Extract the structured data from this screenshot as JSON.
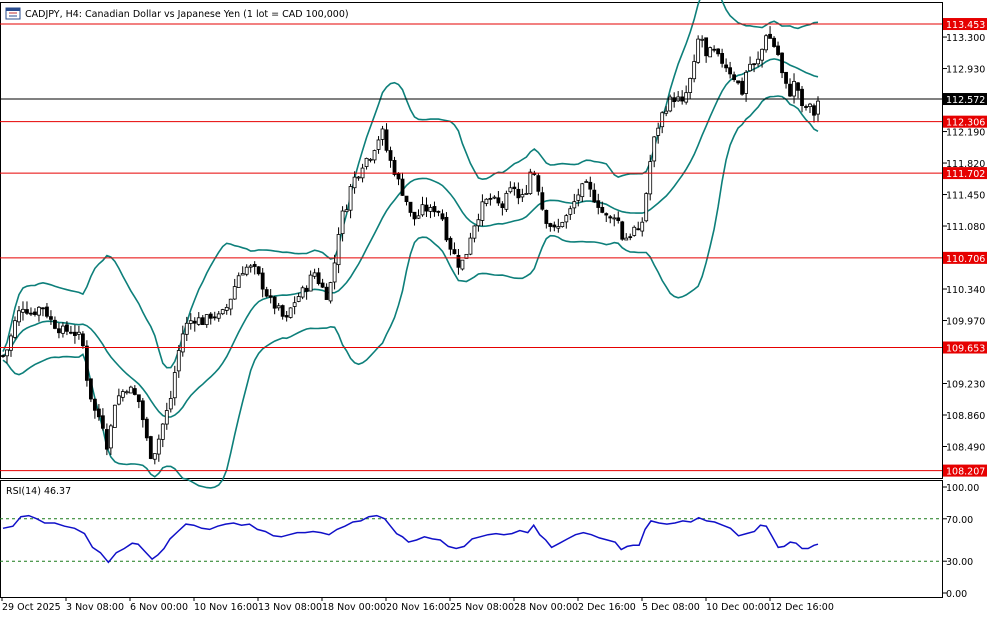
{
  "chart_data": [
    {
      "type": "candlestick",
      "title": "CADJPY, H4:  Canadian Dollar vs Japanese Yen (1 lot = CAD 100,000)",
      "ylim": [
        108.12,
        113.7
      ],
      "y_ticks": [
        113.3,
        112.93,
        112.19,
        111.82,
        111.45,
        111.08,
        110.34,
        109.97,
        109.23,
        108.86,
        108.49
      ],
      "y_tick_labels": [
        "113.300",
        "112.930",
        "112.190",
        "111.820",
        "111.450",
        "111.080",
        "110.340",
        "109.970",
        "109.230",
        "108.860",
        "108.490"
      ],
      "x_tick_labels": [
        "29 Oct 2025",
        "3 Nov 08:00",
        "6 Nov 00:00",
        "10 Nov 16:00",
        "13 Nov 08:00",
        "18 Nov 00:00",
        "20 Nov 16:00",
        "25 Nov 08:00",
        "28 Nov 00:00",
        "2 Dec 16:00",
        "5 Dec 08:00",
        "10 Dec 00:00",
        "12 Dec 16:00"
      ],
      "bollinger_bands_color": "#0d7f7a",
      "levels": [
        {
          "value": 113.453,
          "label": "113.453",
          "color": "#e60000"
        },
        {
          "value": 112.306,
          "label": "112.306",
          "color": "#e60000"
        },
        {
          "value": 111.702,
          "label": "111.702",
          "color": "#e60000"
        },
        {
          "value": 110.706,
          "label": "110.706",
          "color": "#e60000"
        },
        {
          "value": 109.653,
          "label": "109.653",
          "color": "#e60000"
        },
        {
          "value": 108.207,
          "label": "108.207",
          "color": "#e60000"
        }
      ],
      "current_price": {
        "value": 112.572,
        "label": "112.572",
        "color": "#000000"
      },
      "price_path": [
        [
          0,
          109.5
        ],
        [
          8,
          109.65
        ],
        [
          15,
          109.95
        ],
        [
          22,
          110.15
        ],
        [
          32,
          110.05
        ],
        [
          42,
          110.15
        ],
        [
          52,
          109.95
        ],
        [
          62,
          109.85
        ],
        [
          72,
          109.85
        ],
        [
          82,
          109.75
        ],
        [
          88,
          109.2
        ],
        [
          95,
          108.9
        ],
        [
          102,
          108.8
        ],
        [
          108,
          108.45
        ],
        [
          114,
          109.0
        ],
        [
          120,
          109.1
        ],
        [
          128,
          109.2
        ],
        [
          134,
          109.1
        ],
        [
          140,
          109.0
        ],
        [
          146,
          108.6
        ],
        [
          152,
          108.35
        ],
        [
          158,
          108.55
        ],
        [
          164,
          108.8
        ],
        [
          170,
          109.0
        ],
        [
          176,
          109.45
        ],
        [
          182,
          109.8
        ],
        [
          188,
          109.95
        ],
        [
          196,
          110.0
        ],
        [
          204,
          109.95
        ],
        [
          212,
          110.05
        ],
        [
          220,
          110.0
        ],
        [
          228,
          110.15
        ],
        [
          234,
          110.35
        ],
        [
          240,
          110.55
        ],
        [
          248,
          110.6
        ],
        [
          256,
          110.55
        ],
        [
          264,
          110.35
        ],
        [
          270,
          110.2
        ],
        [
          278,
          110.1
        ],
        [
          286,
          109.95
        ],
        [
          292,
          110.15
        ],
        [
          298,
          110.25
        ],
        [
          306,
          110.35
        ],
        [
          314,
          110.55
        ],
        [
          320,
          110.4
        ],
        [
          328,
          110.25
        ],
        [
          334,
          110.6
        ],
        [
          340,
          111.15
        ],
        [
          346,
          111.3
        ],
        [
          352,
          111.6
        ],
        [
          358,
          111.7
        ],
        [
          364,
          111.85
        ],
        [
          370,
          111.9
        ],
        [
          376,
          112.05
        ],
        [
          382,
          112.2
        ],
        [
          388,
          111.9
        ],
        [
          394,
          111.75
        ],
        [
          400,
          111.55
        ],
        [
          406,
          111.4
        ],
        [
          412,
          111.15
        ],
        [
          418,
          111.2
        ],
        [
          424,
          111.3
        ],
        [
          430,
          111.25
        ],
        [
          436,
          111.3
        ],
        [
          442,
          111.2
        ],
        [
          448,
          110.9
        ],
        [
          454,
          110.75
        ],
        [
          460,
          110.6
        ],
        [
          466,
          110.75
        ],
        [
          472,
          111.05
        ],
        [
          478,
          111.2
        ],
        [
          484,
          111.35
        ],
        [
          490,
          111.4
        ],
        [
          496,
          111.35
        ],
        [
          502,
          111.3
        ],
        [
          508,
          111.45
        ],
        [
          514,
          111.55
        ],
        [
          520,
          111.35
        ],
        [
          526,
          111.5
        ],
        [
          532,
          111.8
        ],
        [
          538,
          111.55
        ],
        [
          544,
          111.2
        ],
        [
          550,
          111.1
        ],
        [
          556,
          111.0
        ],
        [
          562,
          111.15
        ],
        [
          568,
          111.2
        ],
        [
          574,
          111.35
        ],
        [
          580,
          111.5
        ],
        [
          586,
          111.55
        ],
        [
          592,
          111.45
        ],
        [
          598,
          111.35
        ],
        [
          604,
          111.2
        ],
        [
          610,
          111.15
        ],
        [
          616,
          111.25
        ],
        [
          622,
          110.95
        ],
        [
          628,
          110.95
        ],
        [
          634,
          111.05
        ],
        [
          640,
          110.95
        ],
        [
          646,
          111.45
        ],
        [
          652,
          112.0
        ],
        [
          658,
          112.25
        ],
        [
          664,
          112.45
        ],
        [
          670,
          112.55
        ],
        [
          676,
          112.6
        ],
        [
          682,
          112.5
        ],
        [
          688,
          112.7
        ],
        [
          694,
          112.95
        ],
        [
          700,
          113.4
        ],
        [
          706,
          113.05
        ],
        [
          712,
          113.15
        ],
        [
          718,
          113.05
        ],
        [
          724,
          113.0
        ],
        [
          730,
          112.9
        ],
        [
          736,
          112.8
        ],
        [
          742,
          112.65
        ],
        [
          748,
          113.0
        ],
        [
          754,
          112.95
        ],
        [
          760,
          113.05
        ],
        [
          766,
          113.35
        ],
        [
          772,
          113.25
        ],
        [
          778,
          113.1
        ],
        [
          784,
          112.75
        ],
        [
          790,
          112.65
        ],
        [
          796,
          112.8
        ],
        [
          802,
          112.45
        ],
        [
          808,
          112.5
        ],
        [
          814,
          112.4
        ],
        [
          818,
          112.55
        ]
      ],
      "rsi": {
        "label": "RSI(14) 46.37",
        "ylim": [
          0,
          100
        ],
        "y_tick_labels": [
          "100.00",
          "70.00",
          "30.00",
          "0.00"
        ],
        "y_ticks": [
          100,
          70,
          30,
          0
        ],
        "levels": [
          70,
          30
        ],
        "color": "#1010c8",
        "values": [
          [
            0,
            61
          ],
          [
            10,
            63
          ],
          [
            18,
            72
          ],
          [
            26,
            73
          ],
          [
            34,
            70
          ],
          [
            42,
            66
          ],
          [
            52,
            66
          ],
          [
            62,
            63
          ],
          [
            72,
            61
          ],
          [
            82,
            56
          ],
          [
            90,
            43
          ],
          [
            98,
            38
          ],
          [
            106,
            29
          ],
          [
            114,
            38
          ],
          [
            122,
            42
          ],
          [
            130,
            47
          ],
          [
            136,
            46
          ],
          [
            142,
            40
          ],
          [
            150,
            32
          ],
          [
            156,
            36
          ],
          [
            162,
            42
          ],
          [
            168,
            51
          ],
          [
            176,
            58
          ],
          [
            184,
            65
          ],
          [
            192,
            64
          ],
          [
            200,
            61
          ],
          [
            208,
            60
          ],
          [
            216,
            63
          ],
          [
            224,
            65
          ],
          [
            232,
            66
          ],
          [
            240,
            64
          ],
          [
            248,
            65
          ],
          [
            256,
            60
          ],
          [
            264,
            58
          ],
          [
            272,
            54
          ],
          [
            280,
            53
          ],
          [
            288,
            55
          ],
          [
            296,
            57
          ],
          [
            304,
            57
          ],
          [
            312,
            58
          ],
          [
            320,
            57
          ],
          [
            328,
            55
          ],
          [
            336,
            60
          ],
          [
            344,
            63
          ],
          [
            352,
            67
          ],
          [
            360,
            68
          ],
          [
            368,
            72
          ],
          [
            376,
            73
          ],
          [
            384,
            70
          ],
          [
            390,
            63
          ],
          [
            396,
            56
          ],
          [
            402,
            53
          ],
          [
            408,
            48
          ],
          [
            416,
            50
          ],
          [
            424,
            53
          ],
          [
            432,
            51
          ],
          [
            440,
            50
          ],
          [
            448,
            44
          ],
          [
            456,
            42
          ],
          [
            464,
            44
          ],
          [
            472,
            51
          ],
          [
            480,
            53
          ],
          [
            488,
            55
          ],
          [
            496,
            56
          ],
          [
            504,
            55
          ],
          [
            512,
            56
          ],
          [
            520,
            59
          ],
          [
            528,
            57
          ],
          [
            534,
            64
          ],
          [
            540,
            55
          ],
          [
            546,
            50
          ],
          [
            552,
            43
          ],
          [
            560,
            47
          ],
          [
            568,
            51
          ],
          [
            576,
            55
          ],
          [
            584,
            57
          ],
          [
            592,
            55
          ],
          [
            600,
            52
          ],
          [
            608,
            50
          ],
          [
            616,
            48
          ],
          [
            622,
            41
          ],
          [
            628,
            44
          ],
          [
            634,
            45
          ],
          [
            640,
            45
          ],
          [
            646,
            60
          ],
          [
            652,
            68
          ],
          [
            660,
            66
          ],
          [
            668,
            65
          ],
          [
            676,
            66
          ],
          [
            684,
            68
          ],
          [
            692,
            67
          ],
          [
            700,
            71
          ],
          [
            708,
            68
          ],
          [
            716,
            67
          ],
          [
            724,
            64
          ],
          [
            732,
            61
          ],
          [
            740,
            54
          ],
          [
            748,
            56
          ],
          [
            756,
            58
          ],
          [
            762,
            64
          ],
          [
            768,
            63
          ],
          [
            774,
            53
          ],
          [
            780,
            43
          ],
          [
            786,
            44
          ],
          [
            792,
            48
          ],
          [
            798,
            47
          ],
          [
            804,
            42
          ],
          [
            810,
            42
          ],
          [
            816,
            45
          ],
          [
            820,
            46
          ]
        ]
      }
    }
  ]
}
